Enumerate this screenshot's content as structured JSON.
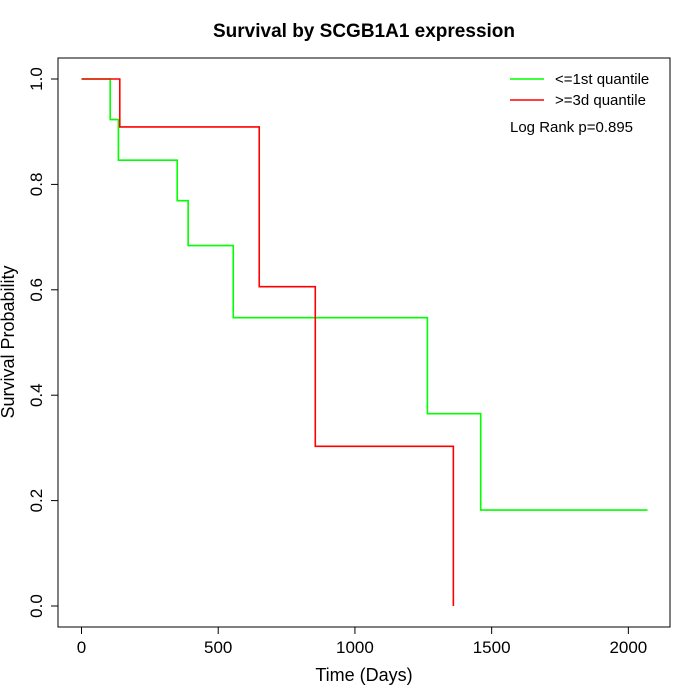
{
  "chart_data": {
    "type": "line",
    "title": "Survival by SCGB1A1 expression",
    "xlabel": "Time (Days)",
    "ylabel": "Survival Probability",
    "xlim": [
      0,
      2070
    ],
    "ylim": [
      0,
      1
    ],
    "x_ticks": [
      0,
      500,
      1000,
      1500,
      2000
    ],
    "y_ticks": [
      0.0,
      0.2,
      0.4,
      0.6,
      0.8,
      1.0
    ],
    "x_tick_labels": [
      "0",
      "500",
      "1000",
      "1500",
      "2000"
    ],
    "y_tick_labels": [
      "0.0",
      "0.2",
      "0.4",
      "0.6",
      "0.8",
      "1.0"
    ],
    "grid": false,
    "legend_position": "top-right",
    "annotation": "Log Rank p=0.895",
    "series": [
      {
        "name": "<=1st quantile",
        "color": "#00ff00",
        "step": true,
        "x": [
          0,
          105,
          135,
          350,
          390,
          555,
          1265,
          1460,
          2070
        ],
        "y": [
          1.0,
          0.923,
          0.846,
          0.769,
          0.684,
          0.547,
          0.365,
          0.182,
          0.182
        ]
      },
      {
        "name": ">=3d quantile",
        "color": "#ff0000",
        "step": true,
        "x": [
          0,
          140,
          650,
          855,
          1360
        ],
        "y": [
          1.0,
          0.909,
          0.606,
          0.303,
          0.0
        ]
      }
    ]
  }
}
